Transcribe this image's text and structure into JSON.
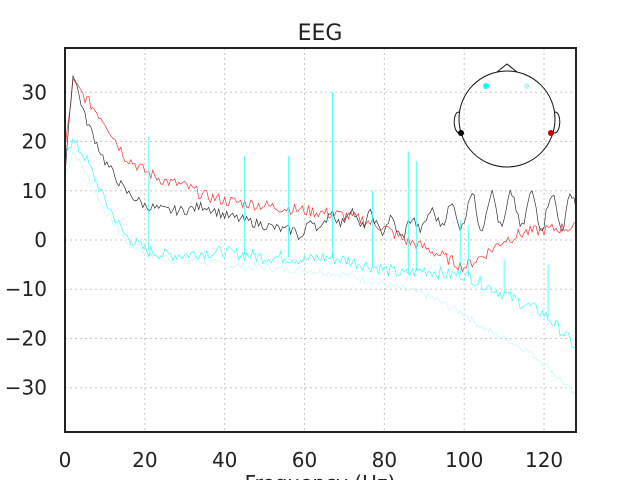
{
  "chart_data": {
    "type": "line",
    "title": "EEG",
    "xlabel": "Frequency (Hz)",
    "ylabel": "",
    "xlim": [
      0,
      128
    ],
    "ylim": [
      -39,
      39
    ],
    "xticks": [
      0,
      20,
      40,
      60,
      80,
      100,
      120
    ],
    "yticks": [
      -30,
      -20,
      -10,
      0,
      10,
      20,
      30
    ],
    "grid": true,
    "x": [
      0,
      2,
      5,
      10,
      15,
      20,
      25,
      30,
      35,
      40,
      45,
      50,
      55,
      60,
      65,
      70,
      75,
      80,
      85,
      90,
      95,
      100,
      105,
      110,
      115,
      120,
      125,
      128
    ],
    "series": [
      {
        "color": "#ff3333",
        "values": [
          18,
          32,
          29,
          24,
          17,
          14,
          12,
          11,
          9,
          8,
          7.5,
          7,
          6.5,
          6,
          5.5,
          5,
          4,
          2.5,
          0,
          -1.5,
          -3.5,
          -5.5,
          -3,
          0,
          1.5,
          2,
          2.5,
          2.5
        ]
      },
      {
        "color": "#333333",
        "values": [
          14,
          34,
          25,
          16,
          10,
          7,
          6,
          6,
          7,
          5,
          4,
          3,
          2,
          2,
          4,
          5,
          4,
          3,
          2,
          4,
          5,
          6,
          6,
          6,
          6,
          6,
          6,
          6
        ]
      },
      {
        "color": "#33ffff",
        "values": [
          19,
          20,
          17,
          8,
          1,
          -2,
          -3,
          -3,
          -2.5,
          -2.5,
          -3,
          -3.5,
          -3.5,
          -4,
          -3.5,
          -4,
          -5,
          -6,
          -7,
          -6,
          -7,
          -7,
          -9,
          -11,
          -13,
          -15,
          -19,
          -22
        ]
      },
      {
        "color": "#bff7f7",
        "values": [
          13,
          18,
          14,
          6,
          0,
          -3,
          -3.5,
          -4,
          -4.5,
          -5,
          -5.5,
          -5.5,
          -6,
          -6,
          -6.5,
          -7,
          -8,
          -9,
          -10,
          -11,
          -13,
          -15,
          -18,
          -20,
          -22,
          -25,
          -29,
          -32
        ]
      }
    ],
    "cyan_peaks": [
      {
        "x": 21,
        "y": 21
      },
      {
        "x": 45,
        "y": 17
      },
      {
        "x": 56,
        "y": 17
      },
      {
        "x": 67,
        "y": 30
      },
      {
        "x": 77,
        "y": 10
      },
      {
        "x": 86,
        "y": 18
      },
      {
        "x": 88,
        "y": 16
      },
      {
        "x": 99,
        "y": 4
      },
      {
        "x": 101,
        "y": 3
      },
      {
        "x": 110,
        "y": -4
      },
      {
        "x": 121,
        "y": -5
      }
    ],
    "inset": {
      "type": "sensor-topomap",
      "sensors": [
        {
          "color": "#00ffff",
          "pos": "front-left"
        },
        {
          "color": "#bff7f7",
          "pos": "front-right"
        },
        {
          "color": "#000000",
          "pos": "left"
        },
        {
          "color": "#cc0000",
          "pos": "right"
        }
      ]
    }
  }
}
